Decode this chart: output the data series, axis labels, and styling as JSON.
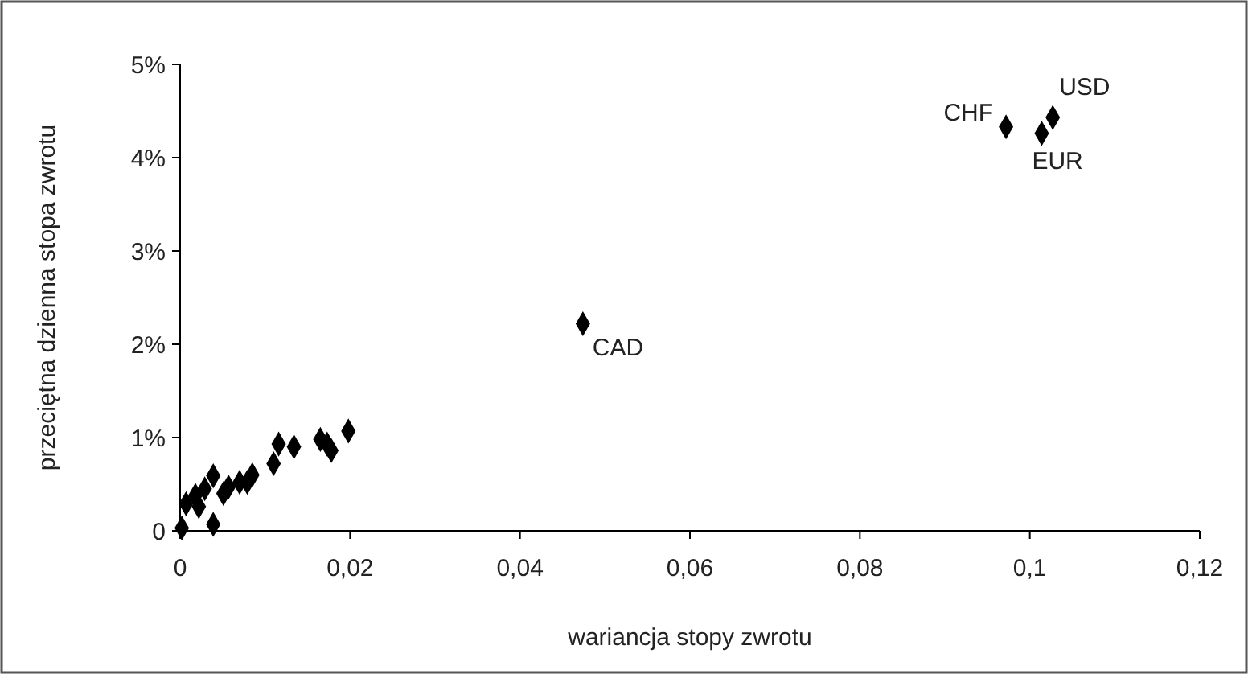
{
  "chart_data": {
    "type": "scatter",
    "xlabel": "wariancja stopy zwrotu",
    "ylabel": "przeciętna dzienna stopa zwrotu",
    "x": [
      0.0972,
      0.1027,
      0.1014,
      0.0474,
      0.0198,
      0.0178,
      0.0165,
      0.0173,
      0.0116,
      0.0134,
      0.011,
      0.0085,
      0.0079,
      0.007,
      0.0057,
      0.0051,
      0.0039,
      0.0039,
      0.0029,
      0.0018,
      0.0002,
      0.0007,
      0.0022
    ],
    "values": [
      4.33,
      4.43,
      4.26,
      2.22,
      1.07,
      0.86,
      0.98,
      0.93,
      0.93,
      0.9,
      0.72,
      0.6,
      0.52,
      0.52,
      0.47,
      0.4,
      0.59,
      0.07,
      0.45,
      0.38,
      0.03,
      0.29,
      0.26
    ],
    "color": "#000000",
    "marker": "diamond",
    "grid": false,
    "xlim": [
      0,
      0.12
    ],
    "xticks": [
      {
        "value": 0,
        "label": "0"
      },
      {
        "value": 0.02,
        "label": "0,02"
      },
      {
        "value": 0.04,
        "label": "0,04"
      },
      {
        "value": 0.06,
        "label": "0,06"
      },
      {
        "value": 0.08,
        "label": "0,08"
      },
      {
        "value": 0.1,
        "label": "0,1"
      },
      {
        "value": 0.12,
        "label": "0,12"
      }
    ],
    "ylim": [
      0,
      5
    ],
    "yticks": [
      {
        "value": 0,
        "label": "0"
      },
      {
        "value": 1,
        "label": "1%"
      },
      {
        "value": 2,
        "label": "2%"
      },
      {
        "value": 3,
        "label": "3%"
      },
      {
        "value": 4,
        "label": "4%"
      },
      {
        "value": 5,
        "label": "5%"
      }
    ],
    "annotations": [
      {
        "text": "CHF",
        "x": 0.0972,
        "y": 4.33
      },
      {
        "text": "USD",
        "x": 0.1027,
        "y": 4.43
      },
      {
        "text": "EUR",
        "x": 0.1014,
        "y": 4.26
      },
      {
        "text": "CAD",
        "x": 0.0474,
        "y": 2.22
      }
    ]
  }
}
